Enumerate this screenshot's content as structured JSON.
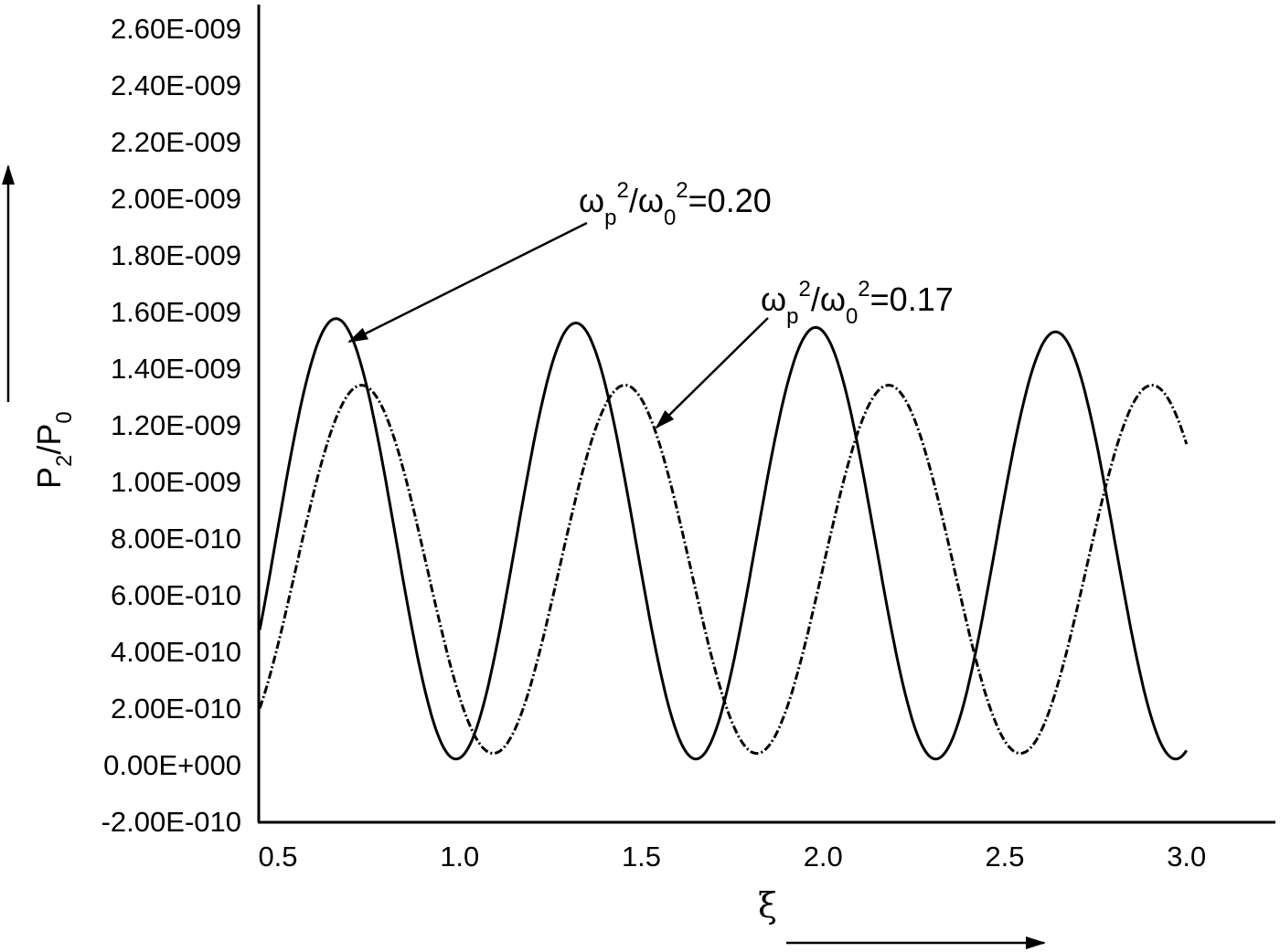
{
  "chart_data": {
    "type": "line",
    "title": "",
    "xlabel": "ξ",
    "ylabel": "P2/P0",
    "xlim": [
      0.45,
      3.3
    ],
    "ylim": [
      -2e-10,
      2.6e-09
    ],
    "grid": false,
    "legend": "annotations with arrows",
    "x_ticks": [
      "0.5",
      "1.0",
      "1.5",
      "2.0",
      "2.5",
      "3.0"
    ],
    "x_tick_values": [
      0.5,
      1.0,
      1.5,
      2.0,
      2.5,
      3.0
    ],
    "y_ticks": [
      "2.60E-009",
      "2.40E-009",
      "2.20E-009",
      "2.00E-009",
      "1.80E-009",
      "1.60E-009",
      "1.40E-009",
      "1.20E-009",
      "1.00E-009",
      "8.00E-010",
      "6.00E-010",
      "4.00E-010",
      "2.00E-010",
      "0.00E+000",
      "-2.00E-010"
    ],
    "y_tick_values": [
      2.6e-09,
      2.4e-09,
      2.2e-09,
      2e-09,
      1.8e-09,
      1.6e-09,
      1.4e-09,
      1.2e-09,
      1e-09,
      8e-10,
      6e-10,
      4e-10,
      2e-10,
      0.0,
      -2e-10
    ],
    "series": [
      {
        "name": "ωp²/ω0² = 0.20",
        "style": "solid",
        "x_range": [
          0.45,
          3.0
        ],
        "peaks_x": [
          0.66,
          1.32,
          1.98,
          2.64
        ],
        "peak_values": [
          1.58e-09,
          1.53e-09,
          1.52e-09,
          1.52e-09
        ],
        "minima_x": [
          0.99,
          1.65,
          2.31,
          2.96
        ],
        "min_value": 2e-11,
        "model": {
          "period": 0.66,
          "phase_x": 0.66,
          "min": 2e-11,
          "max_start": 1.58e-09,
          "max_end": 1.52e-09
        },
        "points": [
          [
            0.45,
            1.2e-10
          ],
          [
            0.55,
            8.5e-10
          ],
          [
            0.66,
            1.58e-09
          ],
          [
            0.8,
            1e-09
          ],
          [
            0.99,
            2e-11
          ],
          [
            1.15,
            7.5e-10
          ],
          [
            1.32,
            1.53e-09
          ],
          [
            1.5,
            7e-10
          ],
          [
            1.65,
            2e-11
          ],
          [
            1.82,
            7.5e-10
          ],
          [
            1.98,
            1.52e-09
          ],
          [
            2.15,
            7e-10
          ],
          [
            2.31,
            2e-11
          ],
          [
            2.48,
            7.5e-10
          ],
          [
            2.64,
            1.52e-09
          ],
          [
            2.8,
            7.5e-10
          ],
          [
            3.0,
            2e-11
          ]
        ]
      },
      {
        "name": "ωp²/ω0² = 0.17",
        "style": "dash-dot",
        "x_range": [
          0.45,
          3.0
        ],
        "peaks_x": [
          0.73,
          1.45,
          2.18,
          2.91
        ],
        "peak_values": [
          1.34e-09,
          1.34e-09,
          1.34e-09,
          1.34e-09
        ],
        "minima_x": [
          1.09,
          1.82,
          2.55
        ],
        "min_value": 4e-11,
        "model": {
          "period": 0.725,
          "phase_x": 0.73,
          "min": 4e-11,
          "max_start": 1.34e-09,
          "max_end": 1.34e-09
        },
        "points": [
          [
            0.45,
            1e-10
          ],
          [
            0.6,
            8e-10
          ],
          [
            0.73,
            1.34e-09
          ],
          [
            0.9,
            8.5e-10
          ],
          [
            1.09,
            4e-11
          ],
          [
            1.27,
            7e-10
          ],
          [
            1.45,
            1.34e-09
          ],
          [
            1.63,
            7e-10
          ],
          [
            1.82,
            4e-11
          ],
          [
            2.0,
            7e-10
          ],
          [
            2.18,
            1.34e-09
          ],
          [
            2.36,
            7e-10
          ],
          [
            2.55,
            4e-11
          ],
          [
            2.73,
            7e-10
          ],
          [
            2.91,
            1.34e-09
          ],
          [
            3.0,
            1.13e-09
          ]
        ]
      }
    ],
    "annotations": [
      {
        "text": "ωp²/ω0²=0.20",
        "base": "ω",
        "sub1": "p",
        "sup1": "2",
        "mid": "/ω",
        "sub2": "0",
        "sup2": "2",
        "tail": "=0.20",
        "points_to_series": 0
      },
      {
        "text": "ωp²/ω0²=0.17",
        "base": "ω",
        "sub1": "p",
        "sup1": "2",
        "mid": "/ω",
        "sub2": "0",
        "sup2": "2",
        "tail": "=0.17",
        "points_to_series": 1
      }
    ]
  },
  "labels": {
    "y_axis": {
      "main1": "P",
      "sub1": "2",
      "slash": "/P",
      "sub2": "0"
    },
    "x_axis": "ξ"
  }
}
